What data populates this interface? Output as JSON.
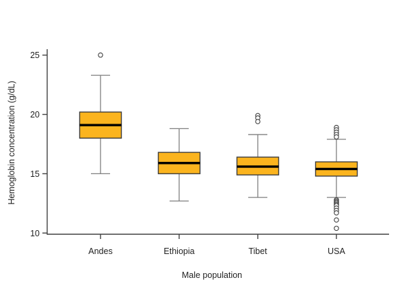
{
  "chart_data": {
    "type": "boxplot",
    "title": "",
    "xlabel": "Male population",
    "ylabel": "Hemoglobin concentration (g/dL)",
    "ylim": [
      9.9,
      25.5
    ],
    "yticks": [
      25,
      20,
      15,
      10
    ],
    "grid": false,
    "legend": false,
    "categories": [
      "Andes",
      "Ethiopia",
      "Tibet",
      "USA"
    ],
    "series": [
      {
        "name": "Andes",
        "whisker_low": 15.0,
        "q1": 18.0,
        "median": 19.1,
        "q3": 20.2,
        "whisker_high": 23.3,
        "outliers": [
          25.0
        ]
      },
      {
        "name": "Ethiopia",
        "whisker_low": 12.7,
        "q1": 15.0,
        "median": 15.9,
        "q3": 16.8,
        "whisker_high": 18.8,
        "outliers": []
      },
      {
        "name": "Tibet",
        "whisker_low": 13.0,
        "q1": 14.9,
        "median": 15.6,
        "q3": 16.4,
        "whisker_high": 18.3,
        "outliers": [
          19.9,
          19.7,
          19.4
        ]
      },
      {
        "name": "USA",
        "whisker_low": 13.0,
        "q1": 14.8,
        "median": 15.4,
        "q3": 16.0,
        "whisker_high": 17.9,
        "outliers": [
          18.9,
          18.7,
          18.5,
          18.3,
          18.1,
          12.8,
          12.7,
          12.6,
          12.5,
          12.4,
          12.3,
          12.1,
          11.9,
          11.7,
          11.1,
          10.4
        ]
      }
    ]
  },
  "colors": {
    "background": "#FFFFFF",
    "box_fill": "#FBB41E",
    "box_border": "#3D3D3D",
    "median": "#000000",
    "whisker": "#7F7F7F",
    "outlier_ring": "#3F3F3F",
    "axis": "#404040",
    "text": "#1F1F1F"
  }
}
